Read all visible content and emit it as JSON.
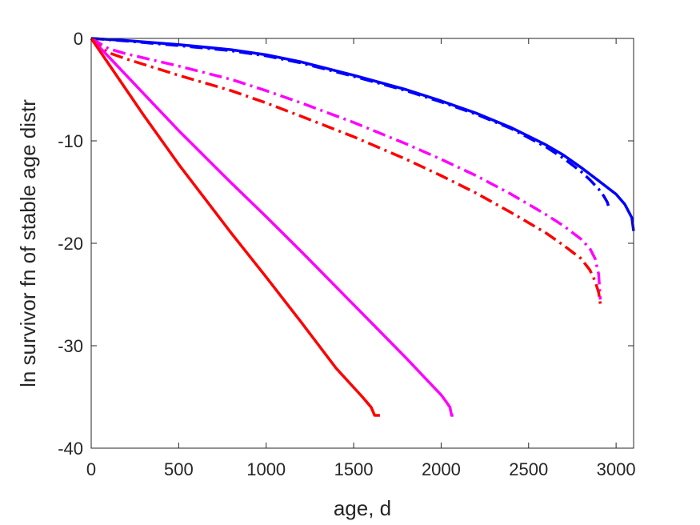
{
  "chart_data": {
    "type": "line",
    "title": "",
    "xlabel": "age, d",
    "ylabel": "ln survivor fn of stable age distr",
    "xlim": [
      0,
      3100
    ],
    "ylim": [
      -40,
      0
    ],
    "xticks": [
      0,
      500,
      1000,
      1500,
      2000,
      2500,
      3000
    ],
    "yticks": [
      0,
      -10,
      -20,
      -30,
      -40
    ],
    "grid": false,
    "legend": "none",
    "series": [
      {
        "color": "#0000ff",
        "style": "solid",
        "x": [
          0,
          200,
          500,
          800,
          1000,
          1200,
          1500,
          1800,
          2000,
          2200,
          2400,
          2600,
          2700,
          2800,
          2900,
          3000,
          3050,
          3090,
          3100
        ],
        "y": [
          0,
          -0.2,
          -0.6,
          -1.1,
          -1.6,
          -2.3,
          -3.6,
          -5.0,
          -6.1,
          -7.3,
          -8.7,
          -10.4,
          -11.4,
          -12.6,
          -13.9,
          -15.2,
          -16.2,
          -17.5,
          -18.8
        ]
      },
      {
        "color": "#0000ff",
        "style": "dashdot",
        "x": [
          0,
          200,
          500,
          800,
          1000,
          1200,
          1500,
          1800,
          2000,
          2200,
          2400,
          2600,
          2700,
          2800,
          2850,
          2900,
          2930,
          2950,
          2960
        ],
        "y": [
          0,
          -0.25,
          -0.7,
          -1.2,
          -1.7,
          -2.4,
          -3.7,
          -5.1,
          -6.2,
          -7.4,
          -8.8,
          -10.6,
          -11.7,
          -13.0,
          -13.8,
          -14.7,
          -15.4,
          -16.0,
          -16.6
        ]
      },
      {
        "color": "#ff00ff",
        "style": "dashdot",
        "x": [
          0,
          50,
          100,
          200,
          500,
          800,
          1000,
          1200,
          1500,
          1800,
          2000,
          2200,
          2400,
          2600,
          2700,
          2800,
          2850,
          2880,
          2900,
          2910
        ],
        "y": [
          0,
          -0.5,
          -1.0,
          -1.5,
          -2.7,
          -4.0,
          -5.1,
          -6.3,
          -8.2,
          -10.3,
          -11.8,
          -13.4,
          -15.2,
          -17.2,
          -18.3,
          -19.6,
          -20.5,
          -21.5,
          -23.0,
          -25.5
        ]
      },
      {
        "color": "#ff0000",
        "style": "dashdot",
        "x": [
          0,
          50,
          100,
          200,
          500,
          800,
          1000,
          1200,
          1500,
          1800,
          2000,
          2200,
          2400,
          2600,
          2700,
          2800,
          2850,
          2880,
          2900,
          2910
        ],
        "y": [
          0,
          -0.8,
          -1.4,
          -2.0,
          -3.6,
          -5.1,
          -6.3,
          -7.6,
          -9.6,
          -11.8,
          -13.4,
          -15.1,
          -17.0,
          -19.0,
          -20.2,
          -21.5,
          -22.6,
          -23.7,
          -24.8,
          -25.9
        ]
      },
      {
        "color": "#ff00ff",
        "style": "solid",
        "x": [
          0,
          100,
          300,
          500,
          800,
          1000,
          1200,
          1500,
          1800,
          1900,
          2000,
          2030,
          2050,
          2060,
          2070
        ],
        "y": [
          0,
          -1.8,
          -5.4,
          -9.0,
          -14.1,
          -17.4,
          -20.8,
          -26.0,
          -31.2,
          -33.0,
          -34.8,
          -35.5,
          -36.0,
          -36.8,
          -36.8
        ]
      },
      {
        "color": "#ff0000",
        "style": "solid",
        "x": [
          0,
          100,
          300,
          500,
          800,
          1000,
          1200,
          1400,
          1550,
          1600,
          1620,
          1650
        ],
        "y": [
          0,
          -2.5,
          -7.5,
          -12.3,
          -19.0,
          -23.3,
          -27.7,
          -32.2,
          -35.0,
          -36.0,
          -36.8,
          -36.8
        ]
      }
    ]
  }
}
